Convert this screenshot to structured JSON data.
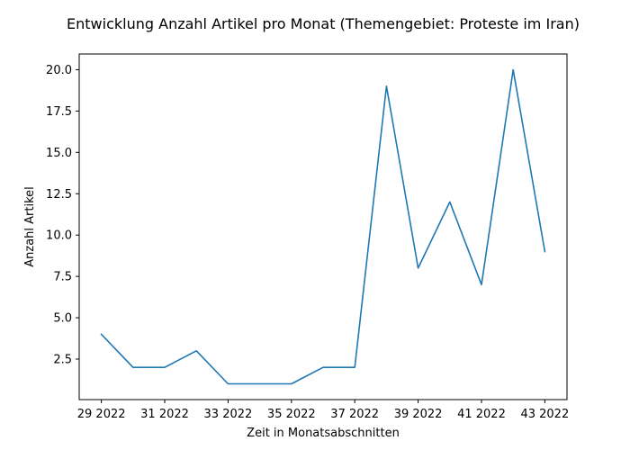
{
  "chart_data": {
    "type": "line",
    "title": "Entwicklung Anzahl Artikel pro Monat (Themengebiet: Proteste im Iran)",
    "xlabel": "Zeit in Monatsabschnitten",
    "ylabel": "Anzahl Artikel",
    "x": [
      29,
      30,
      31,
      32,
      33,
      34,
      35,
      36,
      37,
      38,
      39,
      40,
      41,
      42,
      43
    ],
    "xticks": [
      29,
      31,
      33,
      35,
      37,
      39,
      41,
      43
    ],
    "xtick_labels": [
      "29 2022",
      "31 2022",
      "33 2022",
      "35 2022",
      "37 2022",
      "39 2022",
      "41 2022",
      "43 2022"
    ],
    "yticks": [
      2.5,
      5.0,
      7.5,
      10.0,
      12.5,
      15.0,
      17.5,
      20.0
    ],
    "ytick_labels": [
      "2.5",
      "5.0",
      "7.5",
      "10.0",
      "12.5",
      "15.0",
      "17.5",
      "20.0"
    ],
    "xlim": [
      28.3,
      43.7
    ],
    "ylim": [
      0.05,
      20.95
    ],
    "grid": false,
    "series": [
      {
        "values": [
          4,
          2,
          2,
          3,
          1,
          1,
          1,
          2,
          2,
          19,
          8,
          12,
          7,
          20,
          9
        ],
        "color": "#1f77b4"
      }
    ]
  }
}
